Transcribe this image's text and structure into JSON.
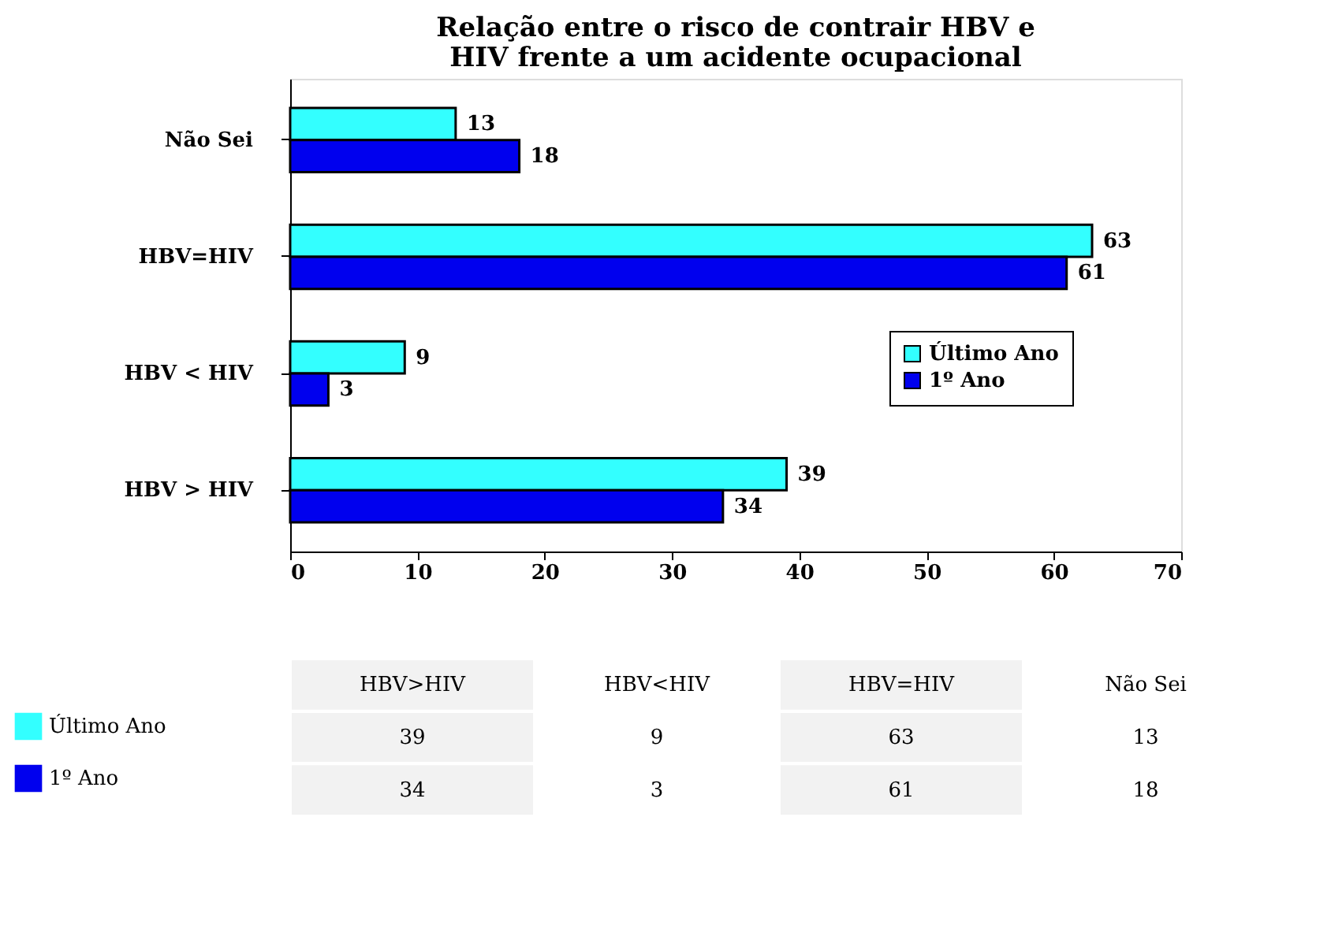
{
  "chart_data": [
    {
      "type": "bar",
      "orientation": "horizontal",
      "title": "Relação entre o risco de contrair HBV e HIV frente a um acidente ocupacional",
      "categories": [
        "Não Sei",
        "HBV=HIV",
        "HBV < HIV",
        "HBV > HIV"
      ],
      "series": [
        {
          "name": "Último Ano",
          "color": "#33ffff",
          "values": [
            13,
            63,
            9,
            39
          ]
        },
        {
          "name": "1º Ano",
          "color": "#0000ee",
          "values": [
            18,
            61,
            3,
            34
          ]
        }
      ],
      "xlim": [
        0,
        70
      ],
      "xticks": [
        0,
        10,
        20,
        30,
        40,
        50,
        60,
        70
      ],
      "data_labels": true,
      "grid": false,
      "legend": "right"
    },
    {
      "type": "heatmap",
      "categories": [
        "HBV>HIV",
        "HBV<HIV",
        "HBV=HIV",
        "Não Sei"
      ],
      "y_categories": [
        "Último Ano",
        "1º Ano"
      ],
      "cells": [
        [
          39,
          9,
          63,
          13
        ],
        [
          34,
          3,
          61,
          18
        ]
      ],
      "data_labels": true
    }
  ]
}
